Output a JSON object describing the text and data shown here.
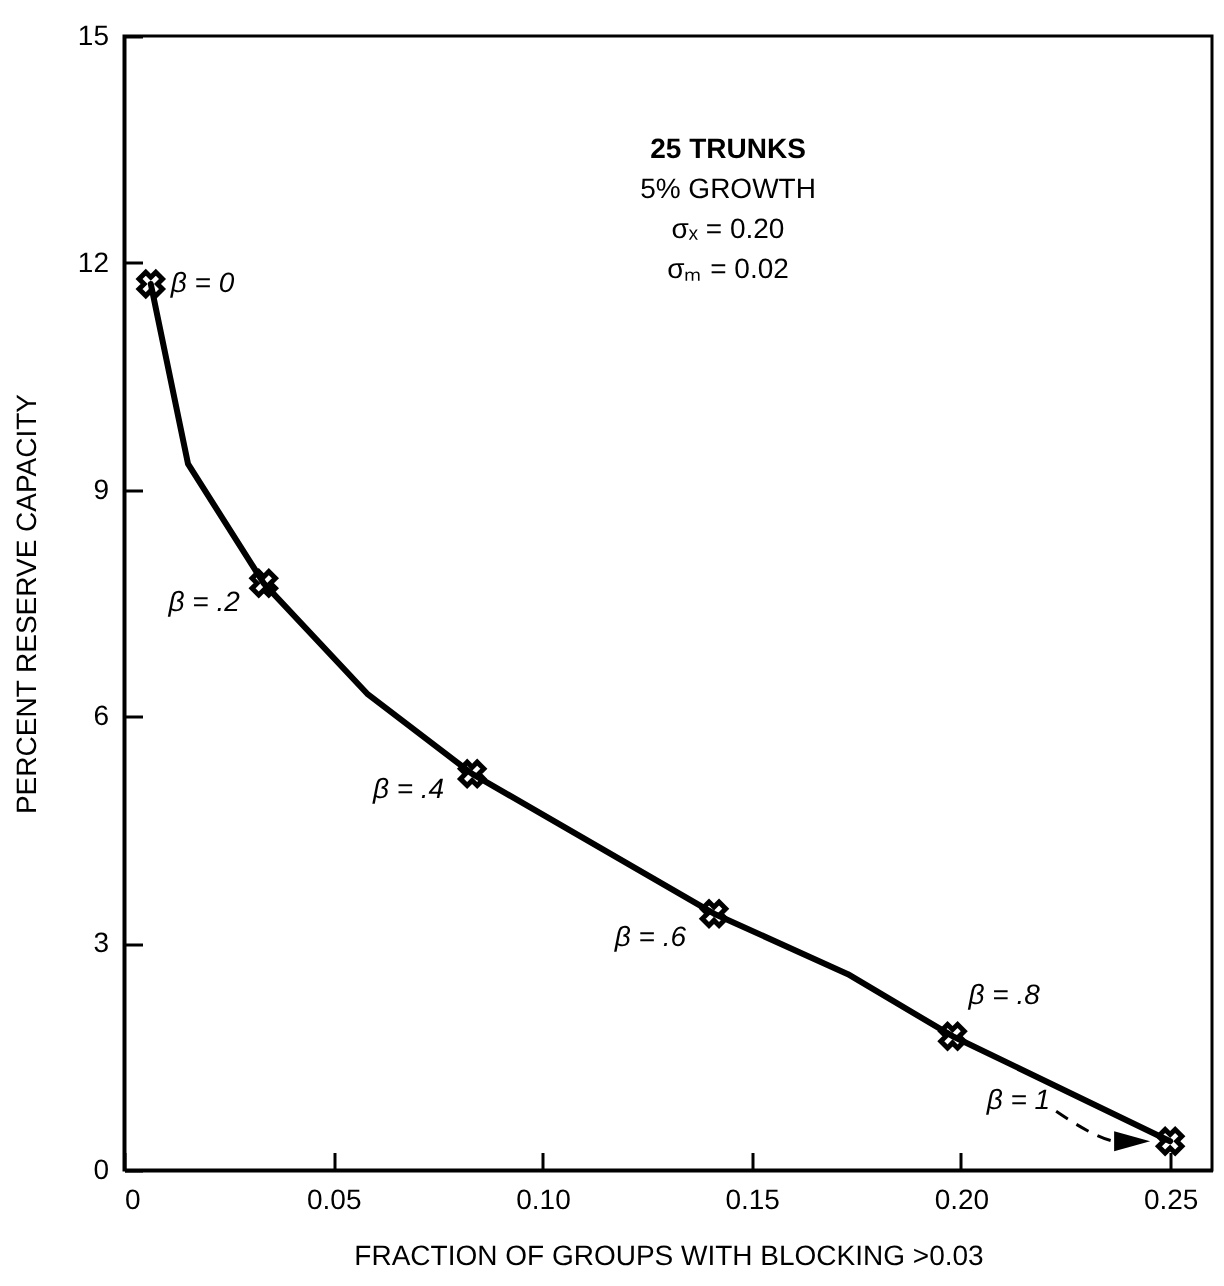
{
  "chart_data": {
    "type": "line",
    "xlabel": "FRACTION OF GROUPS WITH BLOCKING >0.03",
    "ylabel": "PERCENT RESERVE CAPACITY",
    "xlim": [
      0,
      0.26
    ],
    "ylim": [
      0,
      15
    ],
    "xticks": [
      0,
      0.05,
      {
        "value": 0.1,
        "label": "0.10"
      },
      0.15,
      {
        "value": 0.2,
        "label": "0.20"
      },
      0.25
    ],
    "yticks": [
      0,
      3,
      6,
      9,
      12,
      15
    ],
    "series": [
      {
        "type": "line",
        "color": "#000000",
        "marker": "none",
        "line_style": "solid",
        "x": [
          0.0064,
          0.0153,
          0.0334,
          0.0583,
          0.0832,
          0.141,
          0.173,
          0.198,
          0.25
        ],
        "values": [
          11.72,
          9.34,
          7.76,
          6.29,
          5.24,
          3.39,
          2.59,
          1.77,
          0.38
        ]
      },
      {
        "type": "scatter",
        "color": "#000000",
        "marker": "cross",
        "x": [
          0.0064,
          0.0334,
          0.0832,
          0.141,
          0.198,
          0.25
        ],
        "values": [
          11.72,
          7.76,
          5.24,
          3.39,
          1.77,
          0.38
        ]
      }
    ],
    "annotations": [
      "25 TRUNKS",
      "5% GROWTH",
      "σₓ = 0.20",
      "σₘ = 0.02",
      {
        "text": "β = 0",
        "x": 0.0064,
        "y": 11.72
      },
      {
        "text": "β = .2",
        "x": 0.0334,
        "y": 7.76
      },
      {
        "text": "β = .4",
        "x": 0.0832,
        "y": 5.24
      },
      {
        "text": "β = .6",
        "x": 0.141,
        "y": 3.39
      },
      {
        "text": "β  = .8",
        "x": 0.198,
        "y": 1.77
      },
      "β = 1"
    ],
    "grid": false
  }
}
